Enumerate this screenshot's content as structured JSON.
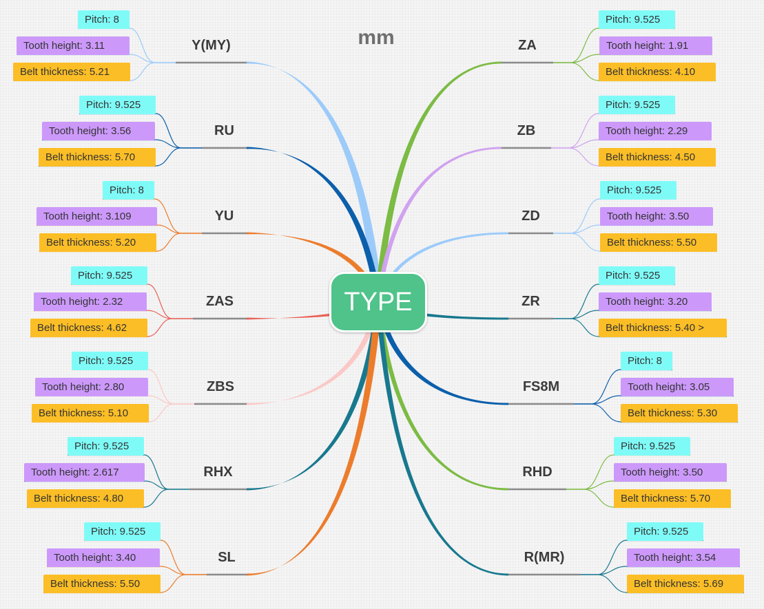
{
  "title": "mm",
  "center_label": "TYPE",
  "colors": {
    "center": "#4fc38a",
    "pitch_tag": "#7ffbf7",
    "tooth_tag": "#cc99fb",
    "belt_tag": "#fcbe26"
  },
  "left": [
    {
      "name": "Y(MY)",
      "color": "#9ccbfa",
      "pitch": "Pitch: 8",
      "tooth": "Tooth height: 3.11",
      "belt": "Belt thickness: 5.21"
    },
    {
      "name": "RU",
      "color": "#0b5fab",
      "pitch": "Pitch: 9.525",
      "tooth": "Tooth height: 3.56",
      "belt": "Belt thickness: 5.70"
    },
    {
      "name": "YU",
      "color": "#ec7c2c",
      "pitch": "Pitch: 8",
      "tooth": "Tooth height: 3.109",
      "belt": "Belt thickness: 5.20"
    },
    {
      "name": "ZAS",
      "color": "#ea6157",
      "pitch": "Pitch: 9.525",
      "tooth": "Tooth height: 2.32",
      "belt": "Belt thickness: 4.62"
    },
    {
      "name": "ZBS",
      "color": "#fbc8c6",
      "pitch": "Pitch: 9.525",
      "tooth": "Tooth height: 2.80",
      "belt": "Belt thickness: 5.10"
    },
    {
      "name": "RHX",
      "color": "#18788e",
      "pitch": "Pitch: 9.525",
      "tooth": "Tooth height: 2.617",
      "belt": "Belt thickness: 4.80"
    },
    {
      "name": "SL",
      "color": "#ec7c2c",
      "pitch": "Pitch: 9.525",
      "tooth": "Tooth height: 3.40",
      "belt": "Belt thickness: 5.50"
    }
  ],
  "right": [
    {
      "name": "ZA",
      "color": "#7cbb44",
      "pitch": "Pitch: 9.525",
      "tooth": "Tooth height: 1.91",
      "belt": "Belt thickness: 4.10"
    },
    {
      "name": "ZB",
      "color": "#d0a2ef",
      "pitch": "Pitch: 9.525",
      "tooth": "Tooth height: 2.29",
      "belt": "Belt thickness: 4.50"
    },
    {
      "name": "ZD",
      "color": "#9ccbfa",
      "pitch": "Pitch: 9.525",
      "tooth": "Tooth height: 3.50",
      "belt": "Belt thickness: 5.50"
    },
    {
      "name": "ZR",
      "color": "#18788e",
      "pitch": "Pitch: 9.525",
      "tooth": "Tooth height: 3.20",
      "belt": "Belt thickness: 5.40 >"
    },
    {
      "name": "FS8M",
      "color": "#0b5fab",
      "pitch": "Pitch: 8",
      "tooth": "Tooth height: 3.05",
      "belt": "Belt thickness: 5.30"
    },
    {
      "name": "RHD",
      "color": "#7cbb44",
      "pitch": "Pitch: 9.525",
      "tooth": "Tooth height: 3.50",
      "belt": "Belt thickness: 5.70"
    },
    {
      "name": "R(MR)",
      "color": "#18788e",
      "pitch": "Pitch: 9.525",
      "tooth": "Tooth height: 3.54",
      "belt": "Belt thickness: 5.69"
    }
  ]
}
